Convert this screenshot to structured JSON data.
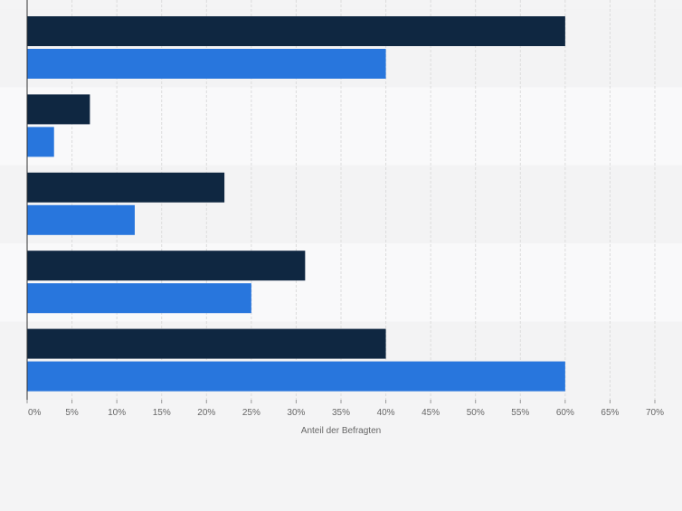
{
  "chart_data": {
    "type": "bar",
    "orientation": "horizontal",
    "title": "",
    "xlabel": "Anteil der Befragten",
    "ylabel": "",
    "xlim": [
      0,
      70
    ],
    "ticks": [
      "0%",
      "5%",
      "10%",
      "15%",
      "20%",
      "25%",
      "30%",
      "35%",
      "40%",
      "45%",
      "50%",
      "55%",
      "60%",
      "65%",
      "70%"
    ],
    "tick_values": [
      0,
      5,
      10,
      15,
      20,
      25,
      30,
      35,
      40,
      45,
      50,
      55,
      60,
      65,
      70
    ],
    "categories": [
      "",
      "",
      "",
      "",
      ""
    ],
    "grid": true,
    "series": [
      {
        "name": "",
        "color": "#0f2741",
        "values": [
          60,
          7,
          22,
          31,
          40
        ]
      },
      {
        "name": "",
        "color": "#2876dd",
        "values": [
          40,
          3,
          12,
          25,
          60
        ]
      }
    ]
  },
  "colors": {
    "page_background": "#f4f4f5",
    "band_dark": "#f3f3f4",
    "band_light": "#f9f9fa",
    "grid": "#dcdcdc",
    "axis_text": "#666666"
  }
}
